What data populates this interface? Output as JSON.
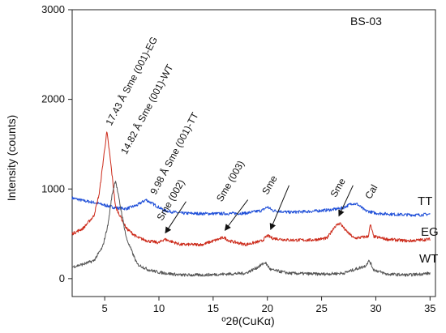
{
  "chart_data": {
    "type": "line",
    "sample_label": "BS-03",
    "xlabel": "º2θ(CuKα)",
    "ylabel": "Intensity (counts)",
    "xlim": [
      2,
      35.5
    ],
    "ylim": [
      -200,
      3000
    ],
    "xticks": [
      5,
      10,
      15,
      20,
      25,
      30,
      35
    ],
    "yticks": [
      0,
      1000,
      2000,
      3000
    ],
    "grid": false,
    "series": [
      {
        "name": "TT",
        "color": "#1f4fd8",
        "points": [
          [
            2,
            900
          ],
          [
            3,
            870
          ],
          [
            4,
            850
          ],
          [
            5,
            820
          ],
          [
            6,
            790
          ],
          [
            7,
            780
          ],
          [
            8,
            820
          ],
          [
            8.8,
            880
          ],
          [
            9.5,
            830
          ],
          [
            10.5,
            760
          ],
          [
            12,
            730
          ],
          [
            14,
            725
          ],
          [
            16,
            725
          ],
          [
            18,
            730
          ],
          [
            19.5,
            760
          ],
          [
            20,
            800
          ],
          [
            20.5,
            760
          ],
          [
            22,
            740
          ],
          [
            24,
            750
          ],
          [
            26,
            770
          ],
          [
            27,
            790
          ],
          [
            27.8,
            840
          ],
          [
            28.3,
            830
          ],
          [
            29,
            760
          ],
          [
            30,
            730
          ],
          [
            32,
            715
          ],
          [
            34,
            710
          ],
          [
            35,
            720
          ]
        ]
      },
      {
        "name": "EG",
        "color": "#cc2a1a",
        "points": [
          [
            2,
            500
          ],
          [
            3,
            560
          ],
          [
            4,
            700
          ],
          [
            4.5,
            950
          ],
          [
            5,
            1450
          ],
          [
            5.2,
            1640
          ],
          [
            5.5,
            1350
          ],
          [
            6,
            800
          ],
          [
            7,
            560
          ],
          [
            8,
            460
          ],
          [
            9,
            420
          ],
          [
            10,
            400
          ],
          [
            10.5,
            440
          ],
          [
            11,
            420
          ],
          [
            12,
            380
          ],
          [
            14,
            380
          ],
          [
            15.5,
            440
          ],
          [
            16,
            460
          ],
          [
            16.5,
            420
          ],
          [
            18,
            380
          ],
          [
            19.5,
            420
          ],
          [
            20,
            480
          ],
          [
            20.5,
            450
          ],
          [
            22,
            430
          ],
          [
            24,
            430
          ],
          [
            25.5,
            450
          ],
          [
            26.2,
            580
          ],
          [
            26.7,
            620
          ],
          [
            27.2,
            540
          ],
          [
            28,
            450
          ],
          [
            29.3,
            470
          ],
          [
            29.5,
            600
          ],
          [
            29.8,
            470
          ],
          [
            31,
            440
          ],
          [
            33,
            420
          ],
          [
            35,
            440
          ]
        ]
      },
      {
        "name": "WT",
        "color": "#555555",
        "points": [
          [
            2,
            130
          ],
          [
            3,
            160
          ],
          [
            4,
            200
          ],
          [
            4.8,
            350
          ],
          [
            5.3,
            600
          ],
          [
            5.7,
            950
          ],
          [
            6,
            1100
          ],
          [
            6.3,
            900
          ],
          [
            7,
            450
          ],
          [
            8,
            160
          ],
          [
            9,
            100
          ],
          [
            10,
            70
          ],
          [
            12,
            40
          ],
          [
            14,
            40
          ],
          [
            16,
            50
          ],
          [
            18,
            60
          ],
          [
            19,
            120
          ],
          [
            19.8,
            180
          ],
          [
            20.3,
            100
          ],
          [
            22,
            60
          ],
          [
            25,
            50
          ],
          [
            27,
            60
          ],
          [
            29,
            140
          ],
          [
            29.4,
            200
          ],
          [
            29.8,
            100
          ],
          [
            31,
            50
          ],
          [
            33,
            40
          ],
          [
            35,
            60
          ]
        ]
      }
    ],
    "annotations": [
      {
        "text": "17.43 Å Sme (001)-EG",
        "x": 5.6,
        "y": 1700,
        "angle": -62
      },
      {
        "text": "14.82 Å Sme (001)-WT",
        "x": 7.0,
        "y": 1380,
        "angle": -62
      },
      {
        "text": "9.98 Å Sme (001)-TT",
        "x": 9.7,
        "y": 930,
        "angle": -62
      },
      {
        "text": "Sme (002)",
        "x": 10.3,
        "y": 640,
        "angle": -60
      },
      {
        "text": "Sme (003)",
        "x": 15.8,
        "y": 850,
        "angle": -60
      },
      {
        "text": "Sme",
        "x": 20.0,
        "y": 930,
        "angle": -60
      },
      {
        "text": "Sme",
        "x": 26.3,
        "y": 900,
        "angle": -60
      },
      {
        "text": "Cal",
        "x": 29.5,
        "y": 880,
        "angle": -60
      }
    ],
    "arrows": [
      {
        "from": [
          12.5,
          860
        ],
        "to": [
          10.6,
          510
        ]
      },
      {
        "from": [
          18.2,
          880
        ],
        "to": [
          16.1,
          540
        ]
      },
      {
        "from": [
          22.0,
          1040
        ],
        "to": [
          20.3,
          550
        ]
      },
      {
        "from": [
          27.9,
          1040
        ],
        "to": [
          26.6,
          700
        ]
      }
    ]
  }
}
